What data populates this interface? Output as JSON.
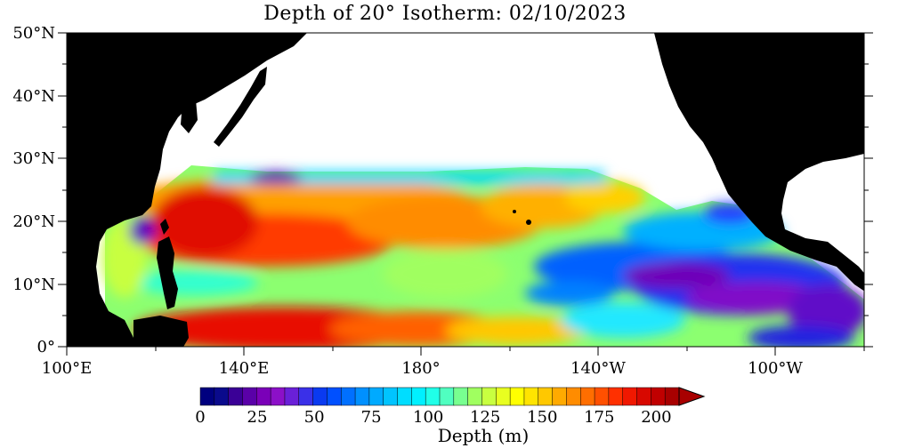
{
  "title": "Depth of 20° Isotherm: 02/10/2023",
  "lat_labels": [
    "50°N",
    "40°N",
    "30°N",
    "20°N",
    "10°N",
    "0°"
  ],
  "lon_labels": [
    "100°E",
    "140°E",
    "180°",
    "140°W",
    "100°W"
  ],
  "colorbar": {
    "label": "Depth (m)",
    "ticks": [
      "0",
      "25",
      "50",
      "75",
      "100",
      "125",
      "150",
      "175",
      "200"
    ],
    "min": 0,
    "max": 210,
    "step": 5,
    "colors": [
      "#00007f",
      "#0a0a8c",
      "#3a0096",
      "#5a00a8",
      "#7a00b8",
      "#8c10c8",
      "#6a20d8",
      "#3a30e8",
      "#0a3af0",
      "#0050ff",
      "#0070ff",
      "#0090ff",
      "#00aaff",
      "#00c4ff",
      "#00ddff",
      "#00f0ff",
      "#20ffe8",
      "#50ffc0",
      "#78ff90",
      "#a0ff60",
      "#c8ff40",
      "#e8ff20",
      "#ffff00",
      "#ffe400",
      "#ffc800",
      "#ffaa00",
      "#ff8c00",
      "#ff6e00",
      "#ff5000",
      "#ff3000",
      "#f01800",
      "#d80800",
      "#c00000",
      "#a80000"
    ],
    "overflow_color": "#a80000"
  },
  "land_color": "#000000",
  "ocean_nodata_color": "#ffffff"
}
